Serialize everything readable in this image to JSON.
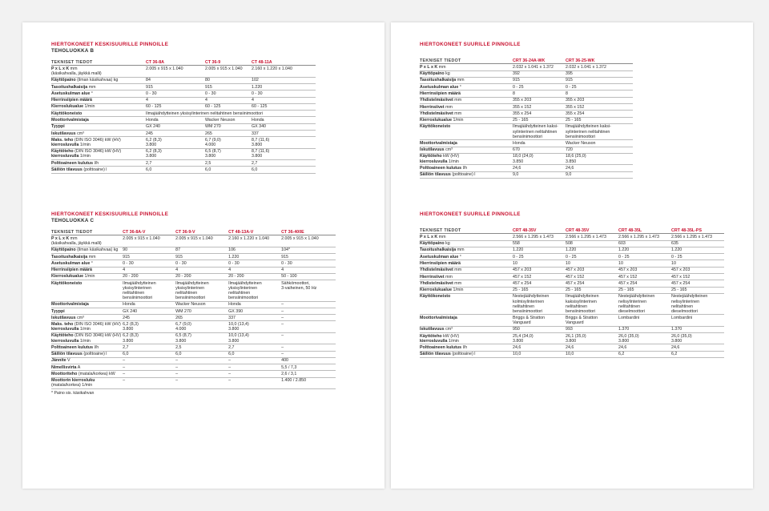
{
  "sections": [
    {
      "title": "HIERTOKONEET KESKISUURILLE PINNOILLE",
      "subtitle": "TEHOLUOKKA B",
      "columns": [
        "TEKNISET TIEDOT",
        "CT 36-8A",
        "CT 36-9",
        "CT 48-11A"
      ],
      "rows": [
        {
          "label": "P x L x K",
          "unit": " mm",
          "sub": "(käsikahvalla, jäykkä malli)",
          "values": [
            "2.005 x 915 x 1.040",
            "2.005 x 915 x 1.040",
            "2.160 x 1.220 x 1.040"
          ]
        },
        {
          "label": "Käyttöpaino",
          "unit": " (ilman käsikahvaa) kg",
          "values": [
            "84",
            "80",
            "102"
          ]
        },
        {
          "label": "Tasoitushalkaisija",
          "unit": " mm",
          "values": [
            "915",
            "915",
            "1.220"
          ]
        },
        {
          "label": "Asetuskulman alue",
          "unit": " °",
          "values": [
            "0 - 30",
            "0 - 30",
            "0 - 30"
          ]
        },
        {
          "label": "Hierrinsiipien määrä",
          "unit": "",
          "values": [
            "4",
            "4",
            "4"
          ]
        },
        {
          "label": "Kierroslukualue",
          "unit": " 1/min",
          "values": [
            "60 - 125",
            "60 - 125",
            "60 - 125"
          ]
        },
        {
          "label": "Käyttökoneisto",
          "unit": "",
          "values": [
            "Ilmajäähdytteinen yksisylinterinen nelitahtinen bensiinimoottori",
            "",
            ""
          ]
        },
        {
          "label": "Moottorivalmistaja",
          "unit": "",
          "values": [
            "Honda",
            "Wacker Neuson",
            "Honda"
          ]
        },
        {
          "label": "Tyyppi",
          "unit": "",
          "values": [
            "GX 240",
            "WM 270",
            "GX 340"
          ]
        },
        {
          "label": "Iskutilavuus",
          "unit": " cm³",
          "values": [
            "245",
            "265",
            "337"
          ]
        },
        {
          "label": "Maks. teho",
          "unit": " (DIN ISO 3046) kW (HV)",
          "label2": "kierrosluvulla",
          "unit2": " 1/min",
          "values": [
            "6,2 (8,3)\n3.800",
            "6,7 (9,0)\n4.000",
            "8,7 (11,6)\n3.800"
          ]
        },
        {
          "label": "Käyttöteho",
          "unit": " (DIN ISO 3046) kW (HV)",
          "label2": "kierrosluvulla",
          "unit2": " 1/min",
          "values": [
            "6,2 (8,3)\n3.800",
            "6,5 (8,7)\n3.800",
            "8,7 (11,6)\n3.800"
          ]
        },
        {
          "label": "Polttoaineen kulutus",
          "unit": " l/h",
          "values": [
            "2,7",
            "2,5",
            "2,7"
          ]
        },
        {
          "label": "Säiliön tilavuus",
          "unit": " (polttoaine) l",
          "values": [
            "6,0",
            "6,0",
            "6,0"
          ]
        }
      ]
    },
    {
      "title": "HIERTOKONEET KESKISUURILLE PINNOILLE",
      "subtitle": "TEHOLUOKKA C",
      "columns": [
        "TEKNISET TIEDOT",
        "CT 36-8A-V",
        "CT 36-9-V",
        "CT 48-13A-V",
        "CT 36-400E"
      ],
      "rows": [
        {
          "label": "P x L x K",
          "unit": " mm",
          "sub": "(käsikahvalla, jäykkä malli)",
          "values": [
            "2.005 x 915 x 1.040",
            "2.005 x 915 x 1.040",
            "2.160 x 1.220 x 1.040",
            "2.005 x 915 x 1.040"
          ]
        },
        {
          "label": "Käyttöpaino",
          "unit": " (ilman käsikahvaa) kg",
          "values": [
            "90",
            "87",
            "106",
            "104*"
          ]
        },
        {
          "label": "Tasoitushalkaisija",
          "unit": " mm",
          "values": [
            "915",
            "915",
            "1.220",
            "915"
          ]
        },
        {
          "label": "Asetuskulman alue",
          "unit": " °",
          "values": [
            "0 - 30",
            "0 - 30",
            "0 - 30",
            "0 - 30"
          ]
        },
        {
          "label": "Hierrinsiipien määrä",
          "unit": "",
          "values": [
            "4",
            "4",
            "4",
            "4"
          ]
        },
        {
          "label": "Kierroslukualue",
          "unit": " 1/min",
          "values": [
            "20 - 200",
            "20 - 200",
            "20 - 200",
            "50 - 100"
          ]
        },
        {
          "label": "Käyttökoneisto",
          "unit": "",
          "values": [
            "Ilmajäähdytteinen\nyksisylinterinen\nnelitahtinen\nbensiinimoottori",
            "Ilmajäähdytteinen\nyksisylinterinen\nnelitahtinen\nbensiinimoottori",
            "Ilmajäähdytteinen\nyksisylinterinen\nnelitahtinen\nbensiinimoottori",
            "Sähkömoottori,\n3-vaiheinen, 50 Hz"
          ]
        },
        {
          "label": "Moottorivalmistaja",
          "unit": "",
          "values": [
            "Honda",
            "Wacker Neuson",
            "Honda",
            "–"
          ]
        },
        {
          "label": "Tyyppi",
          "unit": "",
          "values": [
            "GX 240",
            "WM 270",
            "GX 390",
            "–"
          ]
        },
        {
          "label": "Iskutilavuus",
          "unit": " cm³",
          "values": [
            "245",
            "265",
            "337",
            "–"
          ]
        },
        {
          "label": "Maks. teho",
          "unit": " (DIN ISO 3046) kW (HV)",
          "label2": "kierrosluvulla",
          "unit2": " 1/min",
          "values": [
            "6,2 (8,3)\n3.800",
            "6,7 (9,0)\n4.000",
            "10,0 (13,4)\n3.800",
            "–"
          ]
        },
        {
          "label": "Käyttöteho",
          "unit": " (DIN ISO 3046) kW (HV)",
          "label2": "kierrosluvulla",
          "unit2": " 1/min",
          "values": [
            "6,2 (8,3)\n3.800",
            "6,5 (8,7)\n3.800",
            "10,0 (13,4)\n3.800",
            "–"
          ]
        },
        {
          "label": "Polttoaineen kulutus",
          "unit": " l/h",
          "values": [
            "2,7",
            "2,5",
            "2,7",
            "–"
          ]
        },
        {
          "label": "Säiliön tilavuus",
          "unit": " (polttoaine) l",
          "values": [
            "6,0",
            "6,0",
            "6,0",
            "–"
          ]
        },
        {
          "label": "Jännite",
          "unit": " V",
          "values": [
            "–",
            "–",
            "–",
            "400"
          ]
        },
        {
          "label": "Nimellisvirta",
          "unit": " A",
          "values": [
            "–",
            "–",
            "–",
            "5,5 / 7,3"
          ]
        },
        {
          "label": "Moottoriteho",
          "unit": " (matala/korkea) kW",
          "values": [
            "–",
            "–",
            "–",
            "2,6 / 3,1"
          ]
        },
        {
          "label": "Moottorin kierrosluku",
          "unit": "",
          "sub": "(matala/korkea) 1/min",
          "values": [
            "–",
            "–",
            "–",
            "1.400 / 2.850"
          ]
        }
      ],
      "note": "* Paino sis. käsikahvan"
    },
    {
      "title": "HIERTOKONEET SUURILLE PINNOILLE",
      "subtitle": "",
      "columns": [
        "TEKNISET TIEDOT",
        "CRT 36-24A-WK",
        "CRT 36-25-WK"
      ],
      "rows": [
        {
          "label": "P x L x K",
          "unit": " mm",
          "values": [
            "2.032 x 1.041 x 1.372",
            "2.032 x 1.041 x 1.372"
          ]
        },
        {
          "label": "Käyttöpaino",
          "unit": " kg",
          "values": [
            "392",
            "395"
          ]
        },
        {
          "label": "Tasoitushalkaisija",
          "unit": " mm",
          "values": [
            "915",
            "915"
          ]
        },
        {
          "label": "Asetuskulman alue",
          "unit": " °",
          "values": [
            "0 - 25",
            "0 - 25"
          ]
        },
        {
          "label": "Hierrinsiipien määrä",
          "unit": "",
          "values": [
            "8",
            "8"
          ]
        },
        {
          "label": "Yhdistelmäsiivet",
          "unit": " mm",
          "values": [
            "355 x 203",
            "355 x 203"
          ]
        },
        {
          "label": "Hierrinsiivet",
          "unit": " mm",
          "values": [
            "355 x 152",
            "355 x 152"
          ]
        },
        {
          "label": "Yhdistelmäsiivet",
          "unit": " mm",
          "values": [
            "355 x 254",
            "355 x 254"
          ]
        },
        {
          "label": "Kierroslukualue",
          "unit": " 1/min",
          "values": [
            "25 - 165",
            "25 - 165"
          ]
        },
        {
          "label": "Käyttökoneisto",
          "unit": "",
          "values": [
            "Ilmajäähdytteinen kaksi-\nsylinterinen nelitahtinen\nbensiinimoottori",
            "Ilmajäähdytteinen kaksi-\nsylinterinen nelitahtinen\nbensiinimoottori"
          ]
        },
        {
          "label": "Moottorivalmistaja",
          "unit": "",
          "values": [
            "Honda",
            "Wacker Neuson"
          ]
        },
        {
          "label": "Iskutilavuus",
          "unit": " cm³",
          "values": [
            "670",
            "720"
          ]
        },
        {
          "label": "Käyttöteho",
          "unit": " kW (HV)",
          "label2": "kierrosluvulla",
          "unit2": " 1/min",
          "values": [
            "18,0 (24,0)\n3.850",
            "18,6 (25,0)\n3.850"
          ]
        },
        {
          "label": "Polttoaineen kulutus",
          "unit": " l/h",
          "values": [
            "24,6",
            "24,6"
          ]
        },
        {
          "label": "Säiliön tilavuus",
          "unit": " (polttoaine) l",
          "values": [
            "9,0",
            "9,0"
          ]
        }
      ]
    },
    {
      "title": "HIERTOKONEET SUURILLE PINNOILLE",
      "subtitle": "",
      "columns": [
        "TEKNISET TIEDOT",
        "CRT 48-35V",
        "CRT 48-35V",
        "CRT 48-35L",
        "CRT 48-35L-PS"
      ],
      "rows": [
        {
          "label": "P x L x K",
          "unit": " mm",
          "values": [
            "2.566 x 1.295 x 1.473",
            "2.566 x 1.295 x 1.473",
            "2.566 x 1.295 x 1.473",
            "2.566 x 1.295 x 1.473"
          ]
        },
        {
          "label": "Käyttöpaino",
          "unit": " kg",
          "values": [
            "558",
            "508",
            "603",
            "635"
          ]
        },
        {
          "label": "Tasoitushalkaisija",
          "unit": " mm",
          "values": [
            "1.220",
            "1.220",
            "1.220",
            "1.220"
          ]
        },
        {
          "label": "Asetuskulman alue",
          "unit": " °",
          "values": [
            "0 - 25",
            "0 - 25",
            "0 - 25",
            "0 - 25"
          ]
        },
        {
          "label": "Hierrinsiipien määrä",
          "unit": "",
          "values": [
            "10",
            "10",
            "10",
            "10"
          ]
        },
        {
          "label": "Yhdistelmäsiivet",
          "unit": " mm",
          "values": [
            "457 x 203",
            "457 x 203",
            "457 x 203",
            "457 x 203"
          ]
        },
        {
          "label": "Hierrinsiivet",
          "unit": " mm",
          "values": [
            "457 x 152",
            "457 x 152",
            "457 x 152",
            "457 x 152"
          ]
        },
        {
          "label": "Yhdistelmäsiivet",
          "unit": " mm",
          "values": [
            "457 x 254",
            "457 x 254",
            "457 x 254",
            "457 x 254"
          ]
        },
        {
          "label": "Kierroslukualue",
          "unit": " 1/min",
          "values": [
            "25 - 165",
            "25 - 165",
            "25 - 165",
            "25 - 165"
          ]
        },
        {
          "label": "Käyttökoneisto",
          "unit": "",
          "values": [
            "Nestejäähdytteinen\nkolmisylinterinen\nnelitahtinen\nbensiinimoottori",
            "Ilmajäähdytteinen\nkaksisylinterinen\nnelitahtinen\nbensiinimoottori",
            "Nestejäähdytteinen\nnelisylinterinen\nnelitahtinen\ndieselmoottori",
            "Nestejäähdytteinen\nnelisylinterinen\nnelitahtinen\ndieselmoottori"
          ]
        },
        {
          "label": "Moottorivalmistaja",
          "unit": "",
          "values": [
            "Briggs & Stratton\nVanguard",
            "Briggs & Stratton\nVanguard",
            "Lombardini",
            "Lombardini"
          ]
        },
        {
          "label": "Iskutilavuus",
          "unit": " cm³",
          "values": [
            "950",
            "993",
            "1.370",
            "1.370"
          ]
        },
        {
          "label": "Käyttöteho",
          "unit": " kW (HV)",
          "label2": "kierrosluvulla",
          "unit2": " 1/min",
          "values": [
            "25,4 (34,0)\n3.800",
            "26,1 (35,0)\n3.800",
            "26,0 (35,0)\n3.800",
            "26,0 (35,0)\n3.800"
          ]
        },
        {
          "label": "Polttoaineen kulutus",
          "unit": " l/h",
          "values": [
            "24,6",
            "24,6",
            "24,6",
            "24,6"
          ]
        },
        {
          "label": "Säiliön tilavuus",
          "unit": " (polttoaine) l",
          "values": [
            "10,0",
            "10,0",
            "6,2",
            "6,2"
          ]
        }
      ]
    }
  ]
}
